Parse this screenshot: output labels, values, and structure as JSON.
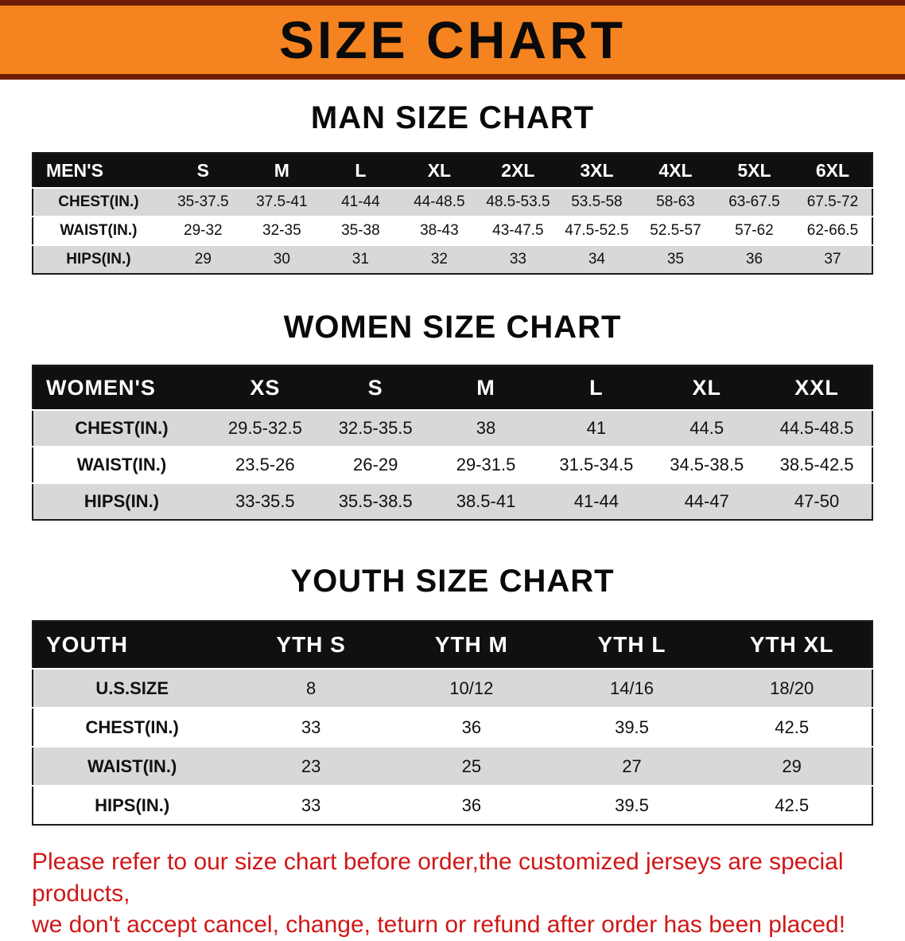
{
  "banner": {
    "title": "SIZE CHART"
  },
  "colors": {
    "banner_bg": "#f5831f",
    "banner_trim": "#6e1c05",
    "header_bg": "#101010",
    "stripe": "#d8d8d8",
    "notice": "#cf1717"
  },
  "sections": [
    {
      "heading": "MAN SIZE CHART",
      "header": [
        "MEN'S",
        "S",
        "M",
        "L",
        "XL",
        "2XL",
        "3XL",
        "4XL",
        "5XL",
        "6XL"
      ],
      "rows": [
        [
          "CHEST(IN.)",
          "35-37.5",
          "37.5-41",
          "41-44",
          "44-48.5",
          "48.5-53.5",
          "53.5-58",
          "58-63",
          "63-67.5",
          "67.5-72"
        ],
        [
          "WAIST(IN.)",
          "29-32",
          "32-35",
          "35-38",
          "38-43",
          "43-47.5",
          "47.5-52.5",
          "52.5-57",
          "57-62",
          "62-66.5"
        ],
        [
          "HIPS(IN.)",
          "29",
          "30",
          "31",
          "32",
          "33",
          "34",
          "35",
          "36",
          "37"
        ]
      ]
    },
    {
      "heading": "WOMEN SIZE CHART",
      "header": [
        "WOMEN'S",
        "XS",
        "S",
        "M",
        "L",
        "XL",
        "XXL"
      ],
      "rows": [
        [
          "CHEST(IN.)",
          "29.5-32.5",
          "32.5-35.5",
          "38",
          "41",
          "44.5",
          "44.5-48.5"
        ],
        [
          "WAIST(IN.)",
          "23.5-26",
          "26-29",
          "29-31.5",
          "31.5-34.5",
          "34.5-38.5",
          "38.5-42.5"
        ],
        [
          "HIPS(IN.)",
          "33-35.5",
          "35.5-38.5",
          "38.5-41",
          "41-44",
          "44-47",
          "47-50"
        ]
      ]
    },
    {
      "heading": "YOUTH SIZE CHART",
      "header": [
        "YOUTH",
        "YTH S",
        "YTH M",
        "YTH L",
        "YTH XL"
      ],
      "rows": [
        [
          "U.S.SIZE",
          "8",
          "10/12",
          "14/16",
          "18/20"
        ],
        [
          "CHEST(IN.)",
          "33",
          "36",
          "39.5",
          "42.5"
        ],
        [
          "WAIST(IN.)",
          "23",
          "25",
          "27",
          "29"
        ],
        [
          "HIPS(IN.)",
          "33",
          "36",
          "39.5",
          "42.5"
        ]
      ]
    }
  ],
  "footer": {
    "line1": "Please refer to our size chart before order,the customized jerseys are special products,",
    "line2": "we don't accept cancel, change, teturn or refund after order has been placed!"
  }
}
